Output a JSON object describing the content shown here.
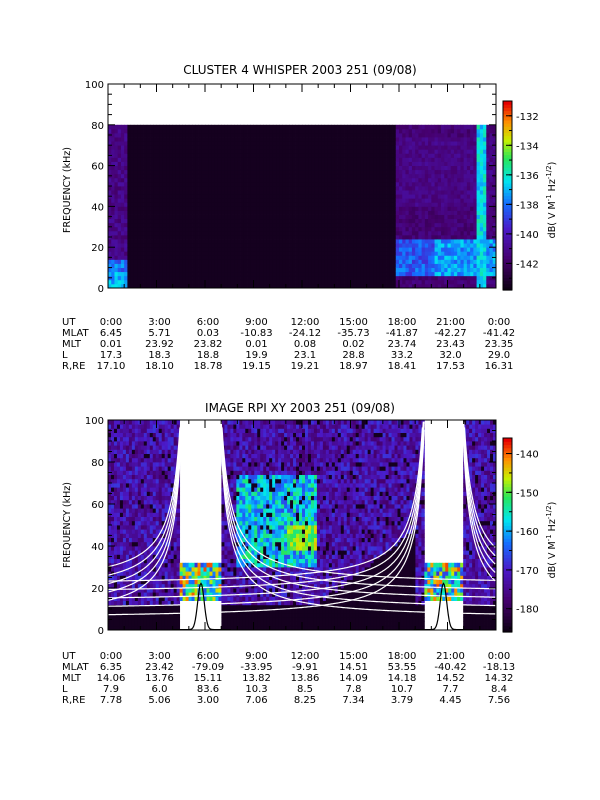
{
  "chart_data": [
    {
      "type": "heatmap",
      "title": "CLUSTER 4 WHISPER 2003 251 (09/08)",
      "ylabel": "FREQUENCY (kHz)",
      "ylim": [
        0,
        100
      ],
      "yticks": [
        "0",
        "20",
        "40",
        "60",
        "80",
        "100"
      ],
      "y_data_max_khz": 80,
      "colorbar": {
        "label": "dB( V M",
        "label_sup1": "-1",
        "label_mid": " Hz",
        "label_sup2": "-1/2",
        "label_end": ")",
        "range": [
          -143.8,
          -131.0
        ],
        "ticks": [
          "-132",
          "-134",
          "-136",
          "-138",
          "-140",
          "-142"
        ],
        "tick_values": [
          -132,
          -134,
          -136,
          -138,
          -140,
          -142
        ]
      },
      "ephemeris": {
        "rows": [
          {
            "label": "UT",
            "values": [
              "0:00",
              "3:00",
              "6:00",
              "9:00",
              "12:00",
              "15:00",
              "18:00",
              "21:00",
              "0:00"
            ]
          },
          {
            "label": "MLAT",
            "values": [
              "6.45",
              "5.71",
              "0.03",
              "-10.83",
              "-24.12",
              "-35.73",
              "-41.87",
              "-42.27",
              "-41.42"
            ]
          },
          {
            "label": "MLT",
            "values": [
              "0.01",
              "23.92",
              "23.82",
              "0.01",
              "0.08",
              "0.02",
              "23.74",
              "23.43",
              "23.35"
            ]
          },
          {
            "label": "L",
            "values": [
              "17.3",
              "18.3",
              "18.8",
              "19.9",
              "23.1",
              "28.8",
              "33.2",
              "32.0",
              "29.0"
            ]
          },
          {
            "label": "R,RE",
            "values": [
              "17.10",
              "18.10",
              "18.78",
              "19.15",
              "19.21",
              "18.97",
              "18.41",
              "17.53",
              "16.31"
            ]
          }
        ]
      }
    },
    {
      "type": "heatmap",
      "title": "IMAGE RPI XY 2003 251 (09/08)",
      "ylabel": "FREQUENCY (kHz)",
      "ylim": [
        0,
        100
      ],
      "yticks": [
        "0",
        "20",
        "40",
        "60",
        "80",
        "100"
      ],
      "data_gaps_ut_hours": [
        [
          4.5,
          7.0
        ],
        [
          19.5,
          22.0
        ]
      ],
      "colorbar": {
        "label": "dB( V M",
        "label_sup1": "-1",
        "label_mid": " Hz",
        "label_sup2": "-1/2",
        "label_end": ")",
        "range": [
          -186,
          -136
        ],
        "ticks": [
          "-140",
          "-150",
          "-160",
          "-170",
          "-180"
        ],
        "tick_values": [
          -140,
          -150,
          -160,
          -170,
          -180
        ]
      },
      "ephemeris": {
        "rows": [
          {
            "label": "UT",
            "values": [
              "0:00",
              "3:00",
              "6:00",
              "9:00",
              "12:00",
              "15:00",
              "18:00",
              "21:00",
              "0:00"
            ]
          },
          {
            "label": "MLAT",
            "values": [
              "6.35",
              "23.42",
              "-79.09",
              "-33.95",
              "-9.91",
              "14.51",
              "53.55",
              "-40.42",
              "-18.13"
            ]
          },
          {
            "label": "MLT",
            "values": [
              "14.06",
              "13.76",
              "15.11",
              "13.82",
              "13.86",
              "14.09",
              "14.18",
              "14.52",
              "14.32"
            ]
          },
          {
            "label": "L",
            "values": [
              "7.9",
              "6.0",
              "83.6",
              "10.3",
              "8.5",
              "7.8",
              "10.7",
              "7.7",
              "8.4"
            ]
          },
          {
            "label": "R,RE",
            "values": [
              "7.78",
              "5.06",
              "3.00",
              "7.06",
              "8.25",
              "7.34",
              "3.79",
              "4.45",
              "7.56"
            ]
          }
        ]
      }
    }
  ]
}
